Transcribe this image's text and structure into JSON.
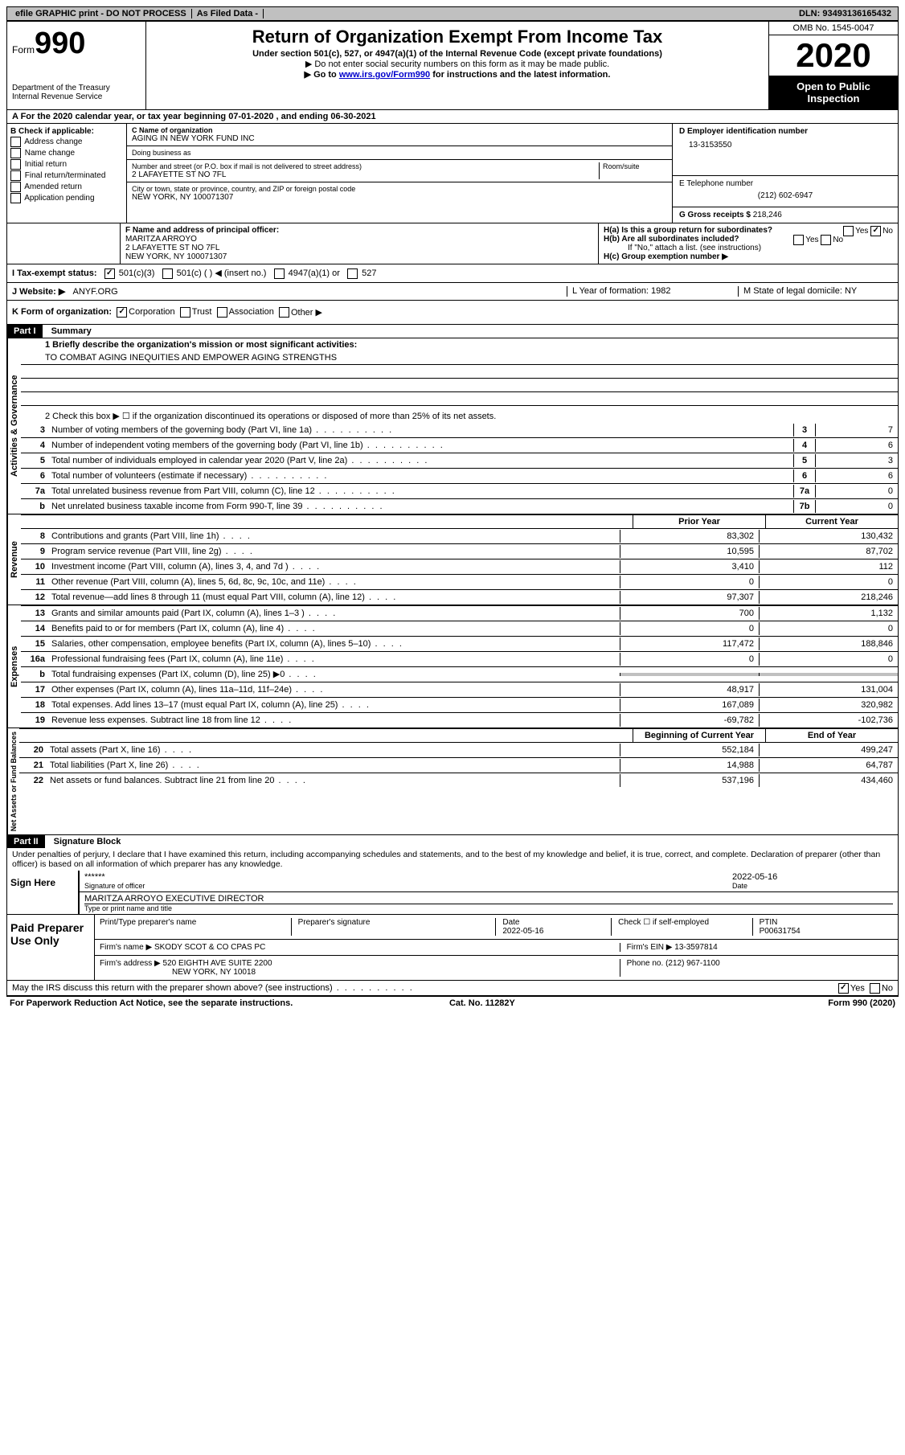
{
  "topbar": {
    "efile": "efile GRAPHIC print - DO NOT PROCESS",
    "asfiled": "As Filed Data -",
    "dln": "DLN: 93493136165432"
  },
  "header": {
    "form_prefix": "Form",
    "form_number": "990",
    "dept": "Department of the Treasury\nInternal Revenue Service",
    "title": "Return of Organization Exempt From Income Tax",
    "subtitle": "Under section 501(c), 527, or 4947(a)(1) of the Internal Revenue Code (except private foundations)",
    "note1": "▶ Do not enter social security numbers on this form as it may be made public.",
    "note2_pre": "▶ Go to ",
    "note2_link": "www.irs.gov/Form990",
    "note2_post": " for instructions and the latest information.",
    "omb": "OMB No. 1545-0047",
    "year": "2020",
    "open": "Open to Public Inspection"
  },
  "rowA": "A   For the 2020 calendar year, or tax year beginning 07-01-2020    , and ending 06-30-2021",
  "colB": {
    "title": "B Check if applicable:",
    "items": [
      "Address change",
      "Name change",
      "Initial return",
      "Final return/terminated",
      "Amended return",
      "Application pending"
    ]
  },
  "colC": {
    "name_label": "C Name of organization",
    "name": "AGING IN NEW YORK FUND INC",
    "dba_label": "Doing business as",
    "dba": "",
    "street_label": "Number and street (or P.O. box if mail is not delivered to street address)",
    "room_label": "Room/suite",
    "street": "2 LAFAYETTE ST NO 7FL",
    "city_label": "City or town, state or province, country, and ZIP or foreign postal code",
    "city": "NEW YORK, NY  100071307"
  },
  "colD": {
    "ein_label": "D Employer identification number",
    "ein": "13-3153550",
    "tel_label": "E Telephone number",
    "tel": "(212) 602-6947",
    "gross_label": "G Gross receipts $ ",
    "gross": "218,246"
  },
  "rowF": {
    "label": "F  Name and address of principal officer:",
    "name": "MARITZA ARROYO",
    "addr1": "2 LAFAYETTE ST NO 7FL",
    "addr2": "NEW YORK, NY  100071307"
  },
  "rowH": {
    "ha": "H(a)  Is this a group return for subordinates?",
    "hb": "H(b)  Are all subordinates included?",
    "hb_note": "If \"No,\" attach a list. (see instructions)",
    "hc": "H(c)  Group exemption number ▶"
  },
  "rowI": {
    "label": "I   Tax-exempt status:",
    "opt1": "501(c)(3)",
    "opt2": "501(c) (   ) ◀ (insert no.)",
    "opt3": "4947(a)(1) or",
    "opt4": "527"
  },
  "rowJ": {
    "label": "J   Website: ▶",
    "value": "ANYF.ORG"
  },
  "rowLM": {
    "L": "L Year of formation: 1982",
    "M": "M State of legal domicile: NY"
  },
  "rowK": {
    "label": "K Form of organization:",
    "opt1": "Corporation",
    "opt2": "Trust",
    "opt3": "Association",
    "opt4": "Other ▶"
  },
  "partI": {
    "header": "Part I",
    "title": "Summary",
    "line1_label": "1 Briefly describe the organization's mission or most significant activities:",
    "mission": "TO COMBAT AGING INEQUITIES AND EMPOWER AGING STRENGTHS",
    "line2": "2   Check this box ▶ ☐  if the organization discontinued its operations or disposed of more than 25% of its net assets.",
    "activities_label": "Activities & Governance",
    "revenue_label": "Revenue",
    "expenses_label": "Expenses",
    "netassets_label": "Net Assets or Fund Balances",
    "prior_year": "Prior Year",
    "current_year": "Current Year",
    "boy": "Beginning of Current Year",
    "eoy": "End of Year",
    "lines_single": [
      {
        "num": "3",
        "text": "Number of voting members of the governing body (Part VI, line 1a)",
        "box": "3",
        "val": "7"
      },
      {
        "num": "4",
        "text": "Number of independent voting members of the governing body (Part VI, line 1b)",
        "box": "4",
        "val": "6"
      },
      {
        "num": "5",
        "text": "Total number of individuals employed in calendar year 2020 (Part V, line 2a)",
        "box": "5",
        "val": "3"
      },
      {
        "num": "6",
        "text": "Total number of volunteers (estimate if necessary)",
        "box": "6",
        "val": "6"
      },
      {
        "num": "7a",
        "text": "Total unrelated business revenue from Part VIII, column (C), line 12",
        "box": "7a",
        "val": "0"
      },
      {
        "num": "b",
        "text": "Net unrelated business taxable income from Form 990-T, line 39",
        "box": "7b",
        "val": "0"
      }
    ],
    "lines_revenue": [
      {
        "num": "8",
        "text": "Contributions and grants (Part VIII, line 1h)",
        "c1": "83,302",
        "c2": "130,432"
      },
      {
        "num": "9",
        "text": "Program service revenue (Part VIII, line 2g)",
        "c1": "10,595",
        "c2": "87,702"
      },
      {
        "num": "10",
        "text": "Investment income (Part VIII, column (A), lines 3, 4, and 7d )",
        "c1": "3,410",
        "c2": "112"
      },
      {
        "num": "11",
        "text": "Other revenue (Part VIII, column (A), lines 5, 6d, 8c, 9c, 10c, and 11e)",
        "c1": "0",
        "c2": "0"
      },
      {
        "num": "12",
        "text": "Total revenue—add lines 8 through 11 (must equal Part VIII, column (A), line 12)",
        "c1": "97,307",
        "c2": "218,246"
      }
    ],
    "lines_expenses": [
      {
        "num": "13",
        "text": "Grants and similar amounts paid (Part IX, column (A), lines 1–3 )",
        "c1": "700",
        "c2": "1,132"
      },
      {
        "num": "14",
        "text": "Benefits paid to or for members (Part IX, column (A), line 4)",
        "c1": "0",
        "c2": "0"
      },
      {
        "num": "15",
        "text": "Salaries, other compensation, employee benefits (Part IX, column (A), lines 5–10)",
        "c1": "117,472",
        "c2": "188,846"
      },
      {
        "num": "16a",
        "text": "Professional fundraising fees (Part IX, column (A), line 11e)",
        "c1": "0",
        "c2": "0"
      },
      {
        "num": "b",
        "text": "Total fundraising expenses (Part IX, column (D), line 25) ▶0",
        "c1": "",
        "c2": "",
        "shaded": true
      },
      {
        "num": "17",
        "text": "Other expenses (Part IX, column (A), lines 11a–11d, 11f–24e)",
        "c1": "48,917",
        "c2": "131,004"
      },
      {
        "num": "18",
        "text": "Total expenses. Add lines 13–17 (must equal Part IX, column (A), line 25)",
        "c1": "167,089",
        "c2": "320,982"
      },
      {
        "num": "19",
        "text": "Revenue less expenses. Subtract line 18 from line 12",
        "c1": "-69,782",
        "c2": "-102,736"
      }
    ],
    "lines_netassets": [
      {
        "num": "20",
        "text": "Total assets (Part X, line 16)",
        "c1": "552,184",
        "c2": "499,247"
      },
      {
        "num": "21",
        "text": "Total liabilities (Part X, line 26)",
        "c1": "14,988",
        "c2": "64,787"
      },
      {
        "num": "22",
        "text": "Net assets or fund balances. Subtract line 21 from line 20",
        "c1": "537,196",
        "c2": "434,460"
      }
    ]
  },
  "partII": {
    "header": "Part II",
    "title": "Signature Block",
    "perjury": "Under penalties of perjury, I declare that I have examined this return, including accompanying schedules and statements, and to the best of my knowledge and belief, it is true, correct, and complete. Declaration of preparer (other than officer) is based on all information of which preparer has any knowledge.",
    "sign_here": "Sign Here",
    "sig_stars": "******",
    "sig_officer_label": "Signature of officer",
    "sig_date": "2022-05-16",
    "date_label": "Date",
    "officer_name": "MARITZA ARROYO  EXECUTIVE DIRECTOR",
    "name_title_label": "Type or print name and title",
    "paid_label": "Paid Preparer Use Only",
    "prep_name_label": "Print/Type preparer's name",
    "prep_sig_label": "Preparer's signature",
    "prep_date": "2022-05-16",
    "check_self": "Check ☐ if self-employed",
    "ptin_label": "PTIN",
    "ptin": "P00631754",
    "firm_name_label": "Firm's name    ▶",
    "firm_name": "SKODY SCOT & CO CPAS PC",
    "firm_ein_label": "Firm's EIN ▶",
    "firm_ein": "13-3597814",
    "firm_addr_label": "Firm's address ▶",
    "firm_addr1": "520 EIGHTH AVE SUITE 2200",
    "firm_addr2": "NEW YORK, NY  10018",
    "phone_label": "Phone no.",
    "phone": "(212) 967-1100",
    "may_irs": "May the IRS discuss this return with the preparer shown above? (see instructions)"
  },
  "footer": {
    "paperwork": "For Paperwork Reduction Act Notice, see the separate instructions.",
    "cat": "Cat. No. 11282Y",
    "form": "Form 990 (2020)"
  }
}
